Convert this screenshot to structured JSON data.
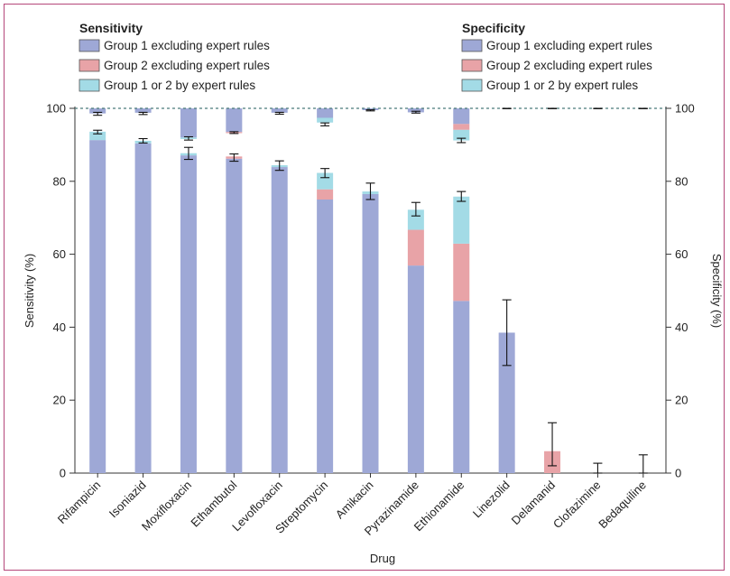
{
  "chart_data": {
    "type": "bar",
    "xlabel": "Drug",
    "ylabel_left": "Sensitivity (%)",
    "ylabel_right": "Specificity (%)",
    "ylim": [
      0,
      100
    ],
    "yticks": [
      0,
      20,
      40,
      60,
      80,
      100
    ],
    "reference_line": 100,
    "categories": [
      "Rifampicin",
      "Isoniazid",
      "Moxifloxacin",
      "Ethambutol",
      "Levofloxacin",
      "Streptomycin",
      "Amikacin",
      "Pyrazinamide",
      "Ethionamide",
      "Linezolid",
      "Delamanid",
      "Clofazimine",
      "Bedaquiline"
    ],
    "legend": {
      "sensitivity": {
        "title": "Sensitivity",
        "entries": [
          "Group 1 excluding expert rules",
          "Group 2 excluding expert rules",
          "Group 1 or 2 by expert rules"
        ]
      },
      "specificity": {
        "title": "Specificity",
        "entries": [
          "Group 1 excluding expert rules",
          "Group 2 excluding expert rules",
          "Group 1 or 2 by expert rules"
        ]
      }
    },
    "colors": {
      "group1": "#9ea8d6",
      "group2": "#e8a3a7",
      "expert": "#a3dbe6",
      "frame": "#b5477a",
      "reference": "#4a7a7a"
    },
    "sensitivity": {
      "series": [
        {
          "key": "group1",
          "values": [
            91.3,
            90.4,
            87.1,
            86.2,
            83.9,
            75.0,
            76.5,
            56.9,
            47.2,
            38.5,
            0,
            0,
            0
          ]
        },
        {
          "key": "group2",
          "values": [
            0,
            0,
            0,
            0.6,
            0,
            2.8,
            0,
            9.8,
            15.7,
            0,
            6.0,
            0,
            0
          ]
        },
        {
          "key": "expert",
          "values": [
            2.3,
            0.7,
            0.6,
            0,
            0.5,
            4.5,
            0.7,
            5.5,
            12.9,
            0,
            0,
            0,
            0
          ]
        }
      ],
      "error_low": [
        93.0,
        90.5,
        86.0,
        85.5,
        83.0,
        81.0,
        75.0,
        70.5,
        74.5,
        29.5,
        2.0,
        0,
        0
      ],
      "error_high": [
        94.0,
        91.7,
        89.3,
        87.5,
        85.6,
        83.5,
        79.5,
        74.2,
        77.2,
        47.5,
        13.8,
        2.7,
        5.0
      ]
    },
    "specificity": {
      "series": [
        {
          "key": "group1",
          "values": [
            1.4,
            1.2,
            8.0,
            6.5,
            1.2,
            2.6,
            0.5,
            1.1,
            4.3,
            0,
            0,
            0,
            0
          ]
        },
        {
          "key": "group2",
          "values": [
            0,
            0,
            0,
            0.3,
            0,
            0,
            0,
            0,
            1.6,
            0,
            0,
            0,
            0
          ]
        },
        {
          "key": "expert",
          "values": [
            0,
            0,
            0.4,
            0,
            0,
            1.3,
            0,
            0,
            2.9,
            0,
            0,
            0,
            0
          ]
        }
      ],
      "error_low": [
        98.1,
        98.3,
        91.3,
        93.1,
        98.4,
        95.2,
        99.3,
        98.7,
        90.6,
        99.9,
        99.9,
        99.9,
        99.9
      ],
      "error_high": [
        98.9,
        98.9,
        92.2,
        93.6,
        98.9,
        96.0,
        99.6,
        99.2,
        91.8,
        100,
        100,
        100,
        100
      ]
    }
  }
}
